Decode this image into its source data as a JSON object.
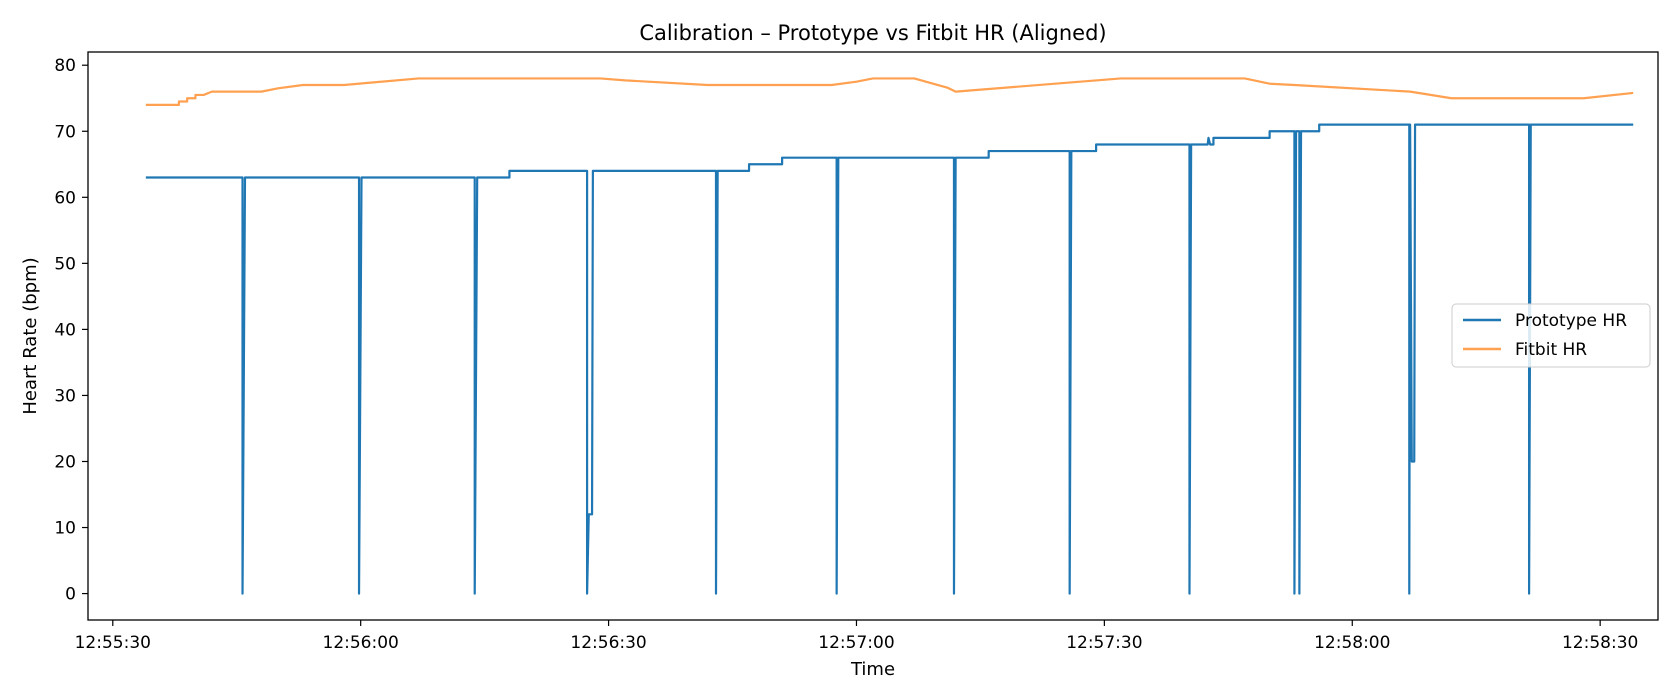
{
  "chart_data": {
    "type": "line",
    "title": "Calibration – Prototype vs Fitbit HR (Aligned)",
    "xlabel": "Time",
    "ylabel": "Heart Rate (bpm)",
    "xlim": [
      "12:55:27",
      "12:58:37"
    ],
    "ylim": [
      -4,
      82
    ],
    "x_ticks": [
      "12:55:30",
      "12:56:00",
      "12:56:30",
      "12:57:00",
      "12:57:30",
      "12:58:00",
      "12:58:30"
    ],
    "y_ticks": [
      0,
      10,
      20,
      30,
      40,
      50,
      60,
      70,
      80
    ],
    "grid": false,
    "legend_position": "center-right",
    "series": [
      {
        "name": "Prototype HR",
        "color": "#1f77b4",
        "points": [
          [
            "12:55:34",
            63
          ],
          [
            "12:55:45.7",
            63
          ],
          [
            "12:55:45.7",
            0
          ],
          [
            "12:55:46.0",
            63
          ],
          [
            "12:55:59.8",
            63
          ],
          [
            "12:55:59.8",
            0
          ],
          [
            "12:56:00.1",
            63
          ],
          [
            "12:56:13.8",
            63
          ],
          [
            "12:56:13.8",
            0
          ],
          [
            "12:56:14.1",
            63
          ],
          [
            "12:56:18",
            63
          ],
          [
            "12:56:18",
            64
          ],
          [
            "12:56:27.4",
            64
          ],
          [
            "12:56:27.4",
            0
          ],
          [
            "12:56:27.6",
            12
          ],
          [
            "12:56:28.0",
            12
          ],
          [
            "12:56:28.1",
            64
          ],
          [
            "12:56:43",
            64
          ],
          [
            "12:56:43",
            0
          ],
          [
            "12:56:43.2",
            64
          ],
          [
            "12:56:47",
            64
          ],
          [
            "12:56:47",
            65
          ],
          [
            "12:56:51",
            65
          ],
          [
            "12:56:51",
            66
          ],
          [
            "12:56:57.6",
            66
          ],
          [
            "12:56:57.6",
            0
          ],
          [
            "12:56:57.8",
            66
          ],
          [
            "12:57:11.8",
            66
          ],
          [
            "12:57:11.8",
            0
          ],
          [
            "12:57:12.0",
            66
          ],
          [
            "12:57:16",
            66
          ],
          [
            "12:57:16",
            67
          ],
          [
            "12:57:25.8",
            67
          ],
          [
            "12:57:25.8",
            0
          ],
          [
            "12:57:26.0",
            67
          ],
          [
            "12:57:29",
            67
          ],
          [
            "12:57:29",
            68
          ],
          [
            "12:57:40.3",
            68
          ],
          [
            "12:57:40.3",
            0
          ],
          [
            "12:57:40.5",
            68
          ],
          [
            "12:57:42.5",
            68
          ],
          [
            "12:57:42.6",
            69
          ],
          [
            "12:57:42.8",
            68
          ],
          [
            "12:57:43.2",
            68
          ],
          [
            "12:57:43.2",
            69
          ],
          [
            "12:57:50",
            69
          ],
          [
            "12:57:50",
            70
          ],
          [
            "12:57:53",
            70
          ],
          [
            "12:57:53",
            0
          ],
          [
            "12:57:53.2",
            70
          ],
          [
            "12:57:53.6",
            70
          ],
          [
            "12:57:53.6",
            0
          ],
          [
            "12:57:53.8",
            70
          ],
          [
            "12:57:56",
            70
          ],
          [
            "12:57:56",
            71
          ],
          [
            "12:58:06.9",
            71
          ],
          [
            "12:58:06.9",
            0
          ],
          [
            "12:58:07.0",
            71
          ],
          [
            "12:58:07.2",
            20
          ],
          [
            "12:58:07.5",
            20
          ],
          [
            "12:58:07.6",
            71
          ],
          [
            "12:58:21.4",
            71
          ],
          [
            "12:58:21.4",
            0
          ],
          [
            "12:58:21.6",
            71
          ],
          [
            "12:58:34",
            71
          ]
        ]
      },
      {
        "name": "Fitbit HR",
        "color": "#ffa150",
        "points": [
          [
            "12:55:34",
            74
          ],
          [
            "12:55:38",
            74
          ],
          [
            "12:55:38",
            74.5
          ],
          [
            "12:55:39",
            74.5
          ],
          [
            "12:55:39",
            75
          ],
          [
            "12:55:40",
            75
          ],
          [
            "12:55:40",
            75.5
          ],
          [
            "12:55:41",
            75.5
          ],
          [
            "12:55:42",
            76
          ],
          [
            "12:55:48",
            76
          ],
          [
            "12:55:50",
            76.5
          ],
          [
            "12:55:53",
            77
          ],
          [
            "12:55:58",
            77
          ],
          [
            "12:56:07",
            78
          ],
          [
            "12:56:29",
            78
          ],
          [
            "12:56:32",
            77.7
          ],
          [
            "12:56:42",
            77
          ],
          [
            "12:56:57",
            77
          ],
          [
            "12:57:00",
            77.5
          ],
          [
            "12:57:02",
            78
          ],
          [
            "12:57:07",
            78
          ],
          [
            "12:57:09",
            77.3
          ],
          [
            "12:57:11",
            76.6
          ],
          [
            "12:57:12",
            76
          ],
          [
            "12:57:32",
            78
          ],
          [
            "12:57:47",
            78
          ],
          [
            "12:57:50",
            77.2
          ],
          [
            "12:57:53",
            77
          ],
          [
            "12:58:07",
            76
          ],
          [
            "12:58:09",
            75.6
          ],
          [
            "12:58:12",
            75
          ],
          [
            "12:58:28",
            75
          ],
          [
            "12:58:34",
            75.8
          ]
        ]
      }
    ]
  }
}
